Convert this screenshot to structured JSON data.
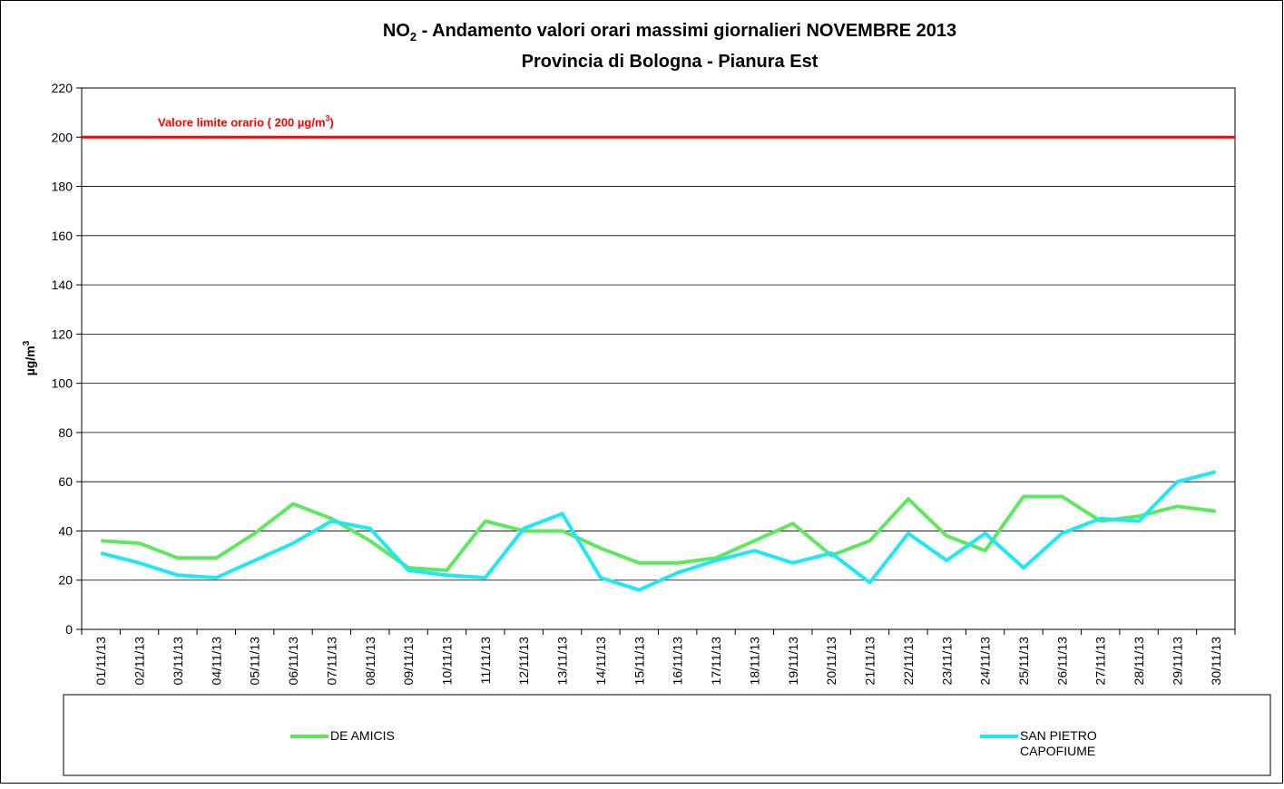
{
  "chart_data": {
    "type": "line",
    "title": {
      "chem": "NO",
      "sub": "2",
      "text": " - Andamento valori orari massimi giornalieri NOVEMBRE 2013"
    },
    "subtitle": "Provincia di Bologna - Pianura Est",
    "y_label": {
      "text": "µg/m",
      "sup": "3"
    },
    "categories": [
      "01/11/13",
      "02/11/13",
      "03/11/13",
      "04/11/13",
      "05/11/13",
      "06/11/13",
      "07/11/13",
      "08/11/13",
      "09/11/13",
      "10/11/13",
      "11/11/13",
      "12/11/13",
      "13/11/13",
      "14/11/13",
      "15/11/13",
      "16/11/13",
      "17/11/13",
      "18/11/13",
      "19/11/13",
      "20/11/13",
      "21/11/13",
      "22/11/13",
      "23/11/13",
      "24/11/13",
      "25/11/13",
      "26/11/13",
      "27/11/13",
      "28/11/13",
      "29/11/13",
      "30/11/13"
    ],
    "series": [
      {
        "name": "DE AMICIS",
        "color": "#5ee85e",
        "values": [
          36,
          35,
          29,
          29,
          39,
          51,
          45,
          36,
          25,
          24,
          44,
          40,
          40,
          33,
          27,
          27,
          29,
          36,
          43,
          30,
          36,
          53,
          38,
          32,
          54,
          54,
          44,
          46,
          50,
          48
        ]
      },
      {
        "name": "SAN PIETRO CAPOFIUME",
        "color": "#1ee8f5",
        "values": [
          31,
          27,
          22,
          21,
          28,
          35,
          44,
          41,
          24,
          22,
          21,
          41,
          47,
          21,
          16,
          23,
          28,
          32,
          27,
          31,
          19,
          39,
          28,
          39,
          25,
          39,
          45,
          44,
          60,
          64
        ]
      }
    ],
    "reference_line": {
      "value": 200,
      "color": "#ff0000",
      "label": {
        "text": "Valore limite orario ( 200 µg/m",
        "sup": "3",
        "end": ")"
      }
    },
    "ylim": [
      0,
      220
    ],
    "yticks": [
      0,
      20,
      40,
      60,
      80,
      100,
      120,
      140,
      160,
      180,
      200,
      220
    ],
    "grid": true
  }
}
